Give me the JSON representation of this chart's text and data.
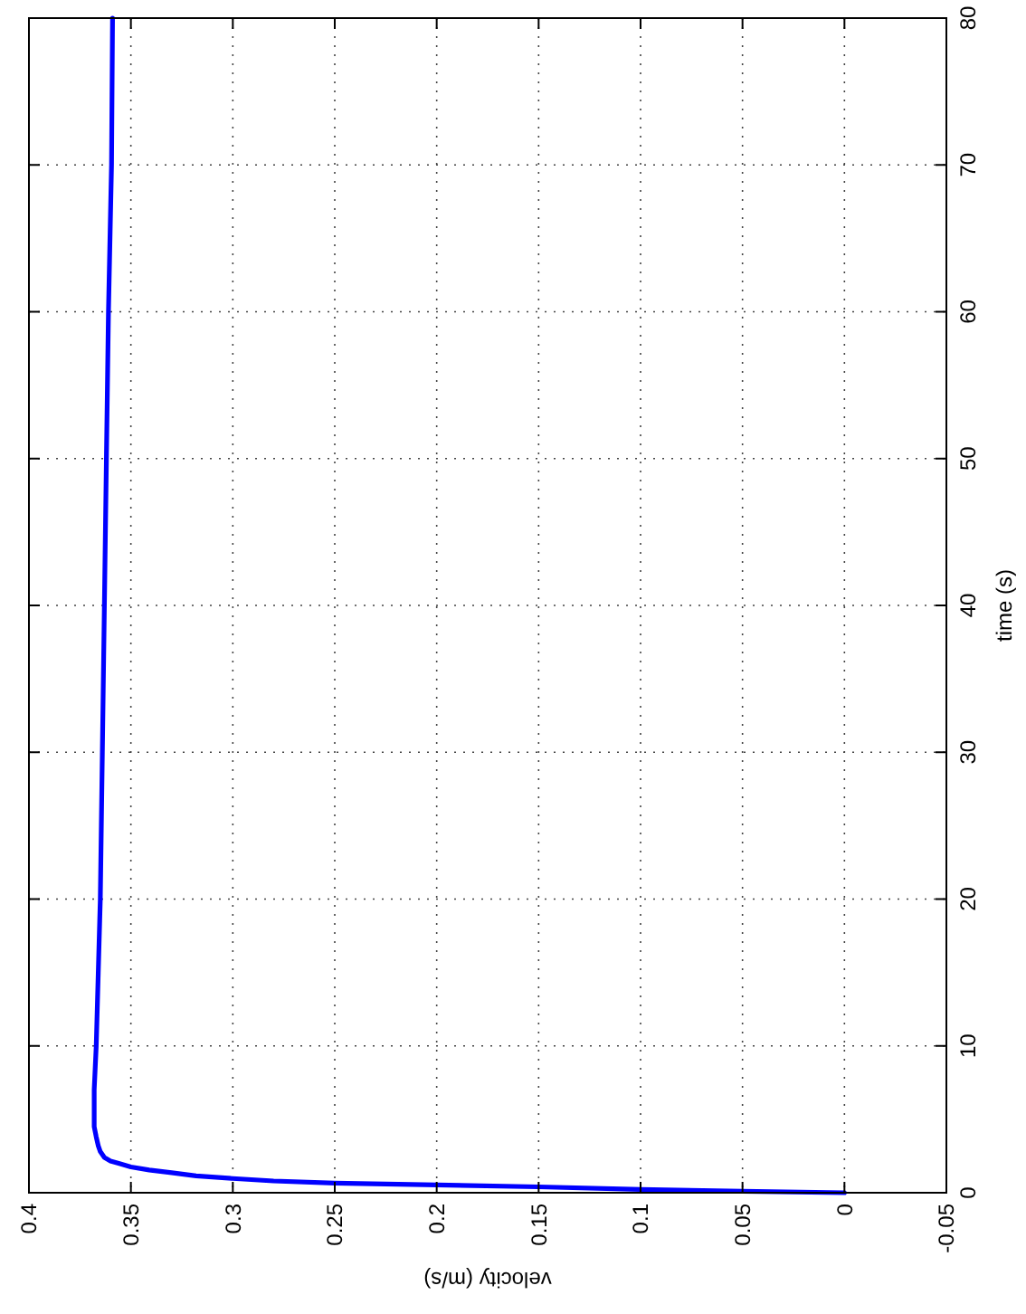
{
  "chart_data": {
    "type": "line",
    "xlabel": "velocity (m/s)",
    "ylabel": "time (s)",
    "x": [
      0,
      0.05,
      0.1,
      0.15,
      0.2,
      0.25,
      0.28,
      0.3,
      0.318,
      0.33,
      0.341,
      0.35,
      0.356,
      0.36,
      0.363,
      0.365,
      0.366,
      0.367,
      0.368,
      0.368,
      0.368,
      0.367,
      0.366,
      0.365,
      0.364,
      0.363,
      0.362,
      0.361,
      0.3595,
      0.359
    ],
    "series": [
      {
        "color": "#0000ff",
        "values": [
          0,
          0.1,
          0.22,
          0.4,
          0.53,
          0.66,
          0.8,
          0.97,
          1.15,
          1.36,
          1.55,
          1.76,
          2.0,
          2.16,
          2.4,
          2.8,
          3.2,
          3.8,
          4.5,
          5.6,
          7,
          10,
          15,
          20,
          30,
          40,
          50,
          60,
          70,
          80
        ]
      }
    ],
    "xlim": [
      0.4,
      -0.05
    ],
    "xticks": [
      0.4,
      0.35,
      0.3,
      0.25,
      0.2,
      0.15,
      0.1,
      0.05,
      0,
      -0.05
    ],
    "ylim": [
      0,
      80
    ],
    "yticks": [
      0,
      10,
      20,
      30,
      40,
      50,
      60,
      70,
      80
    ],
    "grid": true,
    "line_style": "solid",
    "marker": "none"
  }
}
